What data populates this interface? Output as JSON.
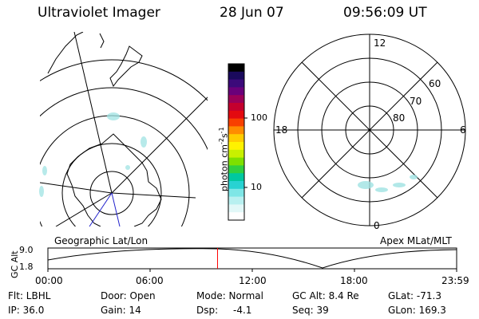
{
  "header": {
    "instrument": "Ultraviolet Imager",
    "date": "28 Jun 07",
    "time": "09:56:09 UT"
  },
  "colorbar": {
    "label": "photon cm-2s-1",
    "label_base": "photon cm",
    "label_exp1": "-2",
    "label_mid": "s",
    "label_exp2": "-1",
    "ticks": [
      "10",
      "100"
    ],
    "colors": [
      "#000000",
      "#1a0a5c",
      "#3b0a7a",
      "#6a007a",
      "#9b0058",
      "#c4002e",
      "#e30a10",
      "#f84000",
      "#ff8c00",
      "#ffcc00",
      "#fff200",
      "#c8f000",
      "#7ee000",
      "#30d040",
      "#00c8a0",
      "#28d2d2",
      "#7ee6e6",
      "#b8f0f0",
      "#e2f8f8",
      "#ffffff"
    ]
  },
  "geo_map": {
    "label": "Geographic Lat/Lon"
  },
  "polar_map": {
    "label": "Apex MLat/MLT",
    "mlt_labels": [
      "12",
      "18",
      "6",
      "0"
    ],
    "lat_labels": [
      "60",
      "70",
      "80"
    ]
  },
  "altitude_plot": {
    "ylabel": "GC Alt",
    "ytick_top": "9.0",
    "ytick_bottom": "1.8",
    "xticks": [
      "00:00",
      "06:00",
      "12:00",
      "18:00",
      "23:59"
    ],
    "current_time_fraction": 0.415,
    "marker_color": "#ff0000"
  },
  "footer": {
    "row1": {
      "flt": "Flt: LBHL",
      "door": "Door: Open",
      "mode": "Mode: Normal",
      "gcalt": "GC Alt: 8.4 Re",
      "glat": "GLat: -71.3"
    },
    "row2": {
      "ip": "IP: 36.0",
      "gain": "Gain: 14",
      "dsp_label": "Dsp:",
      "dsp_value": "-4.1",
      "seq": "Seq: 39",
      "glon": "GLon: 169.3"
    }
  }
}
